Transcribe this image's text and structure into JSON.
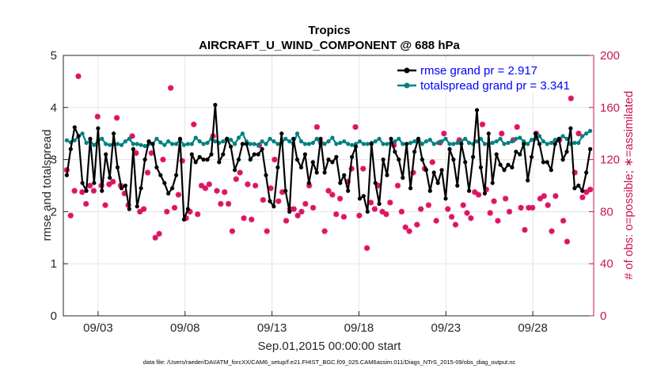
{
  "chart_data": {
    "type": "line",
    "title": "Tropics",
    "subtitle": "AIRCRAFT_U_WIND_COMPONENT @ 688 hPa",
    "xlabel": "Sep.01,2015 00:00:00 start",
    "ylabel_left": "rmse and totalspread",
    "ylabel_right": "# of obs: o=possible; ∗=assimilated",
    "ylim_left": [
      0,
      5
    ],
    "ylim_right": [
      0,
      200
    ],
    "yticks_left": [
      "0",
      "1",
      "2",
      "3",
      "4",
      "5"
    ],
    "yticks_right": [
      "0",
      "40",
      "80",
      "120",
      "160",
      "200"
    ],
    "x_range_days": [
      0,
      30.5
    ],
    "xticks": [
      {
        "day": 2,
        "label": "09/03"
      },
      {
        "day": 7,
        "label": "09/08"
      },
      {
        "day": 12,
        "label": "09/13"
      },
      {
        "day": 17,
        "label": "09/18"
      },
      {
        "day": 22,
        "label": "09/23"
      },
      {
        "day": 27,
        "label": "09/28"
      }
    ],
    "grid": true,
    "legend_position": "top-right",
    "series": [
      {
        "name": "rmse grand pr = 2.917",
        "color": "#000000",
        "axis": "left",
        "values": [
          2.7,
          3.2,
          3.62,
          3.45,
          2.55,
          2.4,
          3.4,
          2.55,
          3.6,
          2.4,
          3.1,
          2.65,
          3.5,
          2.85,
          2.45,
          2.5,
          2.05,
          3.2,
          2.1,
          2.45,
          3.0,
          3.35,
          3.3,
          2.85,
          2.7,
          2.55,
          2.35,
          2.45,
          2.7,
          3.4,
          1.85,
          2.05,
          3.1,
          2.95,
          3.05,
          3.0,
          3.0,
          3.1,
          4.05,
          2.95,
          3.1,
          3.4,
          3.25,
          2.8,
          3.0,
          3.3,
          3.3,
          3.0,
          3.1,
          3.1,
          3.2,
          2.7,
          2.2,
          2.1,
          2.85,
          3.5,
          2.4,
          2.0,
          3.4,
          3.0,
          2.85,
          3.1,
          2.55,
          2.95,
          2.75,
          3.4,
          2.75,
          3.0,
          2.95,
          3.05,
          2.55,
          2.7,
          2.4,
          3.05,
          3.25,
          2.25,
          2.3,
          2.0,
          3.3,
          2.55,
          2.15,
          3.0,
          2.7,
          3.4,
          3.15,
          3.0,
          2.65,
          3.3,
          2.45,
          3.15,
          3.4,
          3.0,
          2.8,
          2.4,
          2.75,
          2.55,
          2.8,
          2.25,
          3.2,
          3.0,
          2.5,
          3.3,
          2.95,
          2.4,
          3.05,
          3.95,
          2.85,
          2.35,
          3.5,
          2.55,
          3.1,
          2.9,
          2.8,
          2.9,
          2.85,
          3.15,
          3.1,
          3.3,
          2.6,
          3.05,
          3.5,
          3.3,
          2.95,
          2.95,
          2.8,
          3.3,
          3.4,
          3.0,
          3.15,
          3.6,
          2.45,
          2.5,
          2.4,
          2.75,
          3.2
        ]
      },
      {
        "name": "totalspread grand pr = 3.341",
        "color": "#008080",
        "axis": "left",
        "values": [
          3.37,
          3.33,
          3.37,
          3.45,
          3.5,
          3.32,
          3.35,
          3.28,
          3.36,
          3.4,
          3.3,
          3.28,
          3.3,
          3.3,
          3.28,
          3.35,
          3.4,
          3.3,
          3.3,
          3.28,
          3.26,
          3.3,
          3.3,
          3.4,
          3.33,
          3.28,
          3.35,
          3.3,
          3.3,
          3.38,
          3.28,
          3.3,
          3.3,
          3.42,
          3.35,
          3.3,
          3.32,
          3.4,
          3.35,
          3.32,
          3.35,
          3.4,
          3.38,
          3.3,
          3.42,
          3.5,
          3.35,
          3.3,
          3.3,
          3.28,
          3.35,
          3.3,
          3.4,
          3.35,
          3.3,
          3.32,
          3.4,
          3.35,
          3.3,
          3.5,
          3.35,
          3.3,
          3.3,
          3.32,
          3.4,
          3.3,
          3.3,
          3.35,
          3.42,
          3.3,
          3.32,
          3.35,
          3.3,
          3.28,
          3.3,
          3.35,
          3.3,
          3.3,
          3.32,
          3.35,
          3.4,
          3.3,
          3.3,
          3.32,
          3.35,
          3.4,
          3.3,
          3.3,
          3.32,
          3.35,
          3.4,
          3.3,
          3.35,
          3.38,
          3.3,
          3.32,
          3.35,
          3.4,
          3.3,
          3.3,
          3.32,
          3.35,
          3.4,
          3.32,
          3.3,
          3.35,
          3.4,
          3.3,
          3.3,
          3.32,
          3.35,
          3.4,
          3.3,
          3.32,
          3.35,
          3.4,
          3.42,
          3.35,
          3.3,
          3.38,
          3.4,
          3.45,
          3.35,
          3.3,
          3.32,
          3.38,
          3.4,
          3.45,
          3.4,
          3.3,
          3.32,
          3.32,
          3.45,
          3.5,
          3.55
        ]
      },
      {
        "name": "obs assimilated",
        "color": "#dc1464",
        "axis": "right",
        "values": [
          112,
          77,
          96,
          184,
          95,
          86,
          100,
          96,
          153,
          100,
          85,
          101,
          103,
          152,
          100,
          94,
          85,
          138,
          125,
          80,
          82,
          110,
          125,
          60,
          63,
          120,
          80,
          175,
          83,
          93,
          119,
          75,
          80,
          147,
          78,
          100,
          98,
          101,
          138,
          96,
          86,
          95,
          86,
          65,
          105,
          110,
          75,
          101,
          74,
          100,
          131,
          89,
          65,
          98,
          120,
          88,
          95,
          73,
          82,
          82,
          77,
          80,
          86,
          100,
          83,
          145,
          133,
          65,
          96,
          93,
          78,
          90,
          76,
          103,
          113,
          145,
          77,
          113,
          52,
          87,
          82,
          100,
          80,
          78,
          87,
          131,
          100,
          80,
          68,
          65,
          110,
          70,
          82,
          113,
          85,
          118,
          73,
          133,
          140,
          82,
          76,
          70,
          135,
          85,
          79,
          75,
          95,
          93,
          147,
          97,
          79,
          88,
          73,
          140,
          90,
          80,
          135,
          145,
          83,
          66,
          83,
          83,
          140,
          90,
          92,
          85,
          65,
          92,
          135,
          73,
          57,
          167,
          110,
          140,
          91,
          95,
          97
        ]
      }
    ]
  },
  "footer": {
    "data_file": "data file: /Users/raeder/DAI/ATM_forcXX/CAM6_setup/f.e21.FHIST_BGC.f09_025.CAM6assim.011/Diags_NTrS_2015-09/obs_diag_output.nc"
  },
  "colors": {
    "rmse": "#000000",
    "spread": "#008080",
    "obs": "#dc1464",
    "legend_text": "#0000ff",
    "right_axis": "#c8144f",
    "grid": "#e3e3e3"
  }
}
